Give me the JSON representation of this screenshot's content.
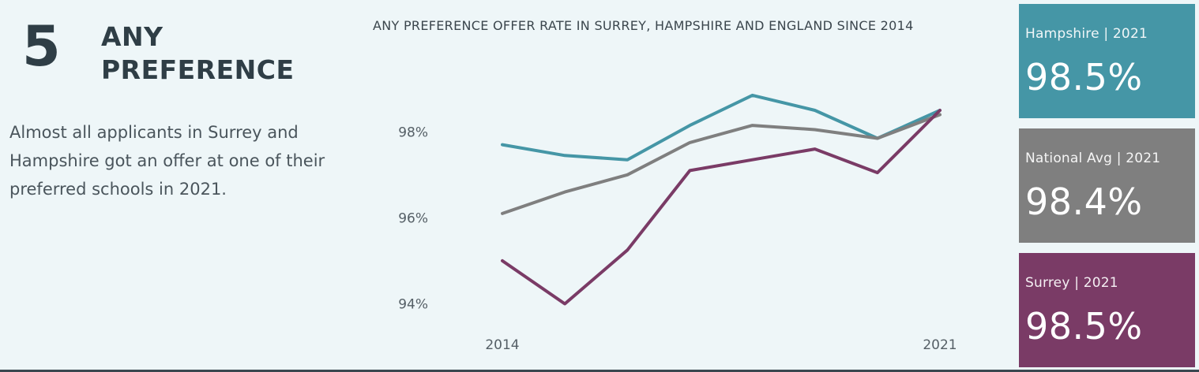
{
  "section": {
    "number": "5",
    "heading_line1": "ANY",
    "heading_line2": "PREFERENCE",
    "summary": "Almost all applicants in Surrey and Hampshire got an offer at one of their preferred schools in 2021."
  },
  "chart_data": {
    "type": "line",
    "title": "ANY PREFERENCE OFFER RATE IN SURREY, HAMPSHIRE AND ENGLAND SINCE 2014",
    "x": [
      2014,
      2015,
      2016,
      2017,
      2018,
      2019,
      2020,
      2021
    ],
    "x_tick_labels": [
      "2014",
      "2021"
    ],
    "y_tick_values": [
      94,
      96,
      98
    ],
    "y_tick_labels": [
      "94%",
      "96%",
      "98%"
    ],
    "ylim": [
      93.0,
      99.6
    ],
    "grid": false,
    "series": [
      {
        "color": "#4596a6",
        "values": [
          97.7,
          97.45,
          97.35,
          98.15,
          98.85,
          98.5,
          97.85,
          98.5
        ]
      },
      {
        "color": "#7f7f7f",
        "values": [
          96.1,
          96.6,
          97.0,
          97.75,
          98.15,
          98.05,
          97.85,
          98.4
        ]
      },
      {
        "color": "#7a3b66",
        "values": [
          95.0,
          94.0,
          95.25,
          97.1,
          97.35,
          97.6,
          97.05,
          98.5
        ]
      }
    ]
  },
  "kpis": [
    {
      "label": "Hampshire | 2021",
      "value": "98.5%",
      "color": "#4596a6"
    },
    {
      "label": "National Avg | 2021",
      "value": "98.4%",
      "color": "#7f7f7f"
    },
    {
      "label": "Surrey | 2021",
      "value": "98.5%",
      "color": "#7a3b66"
    }
  ]
}
